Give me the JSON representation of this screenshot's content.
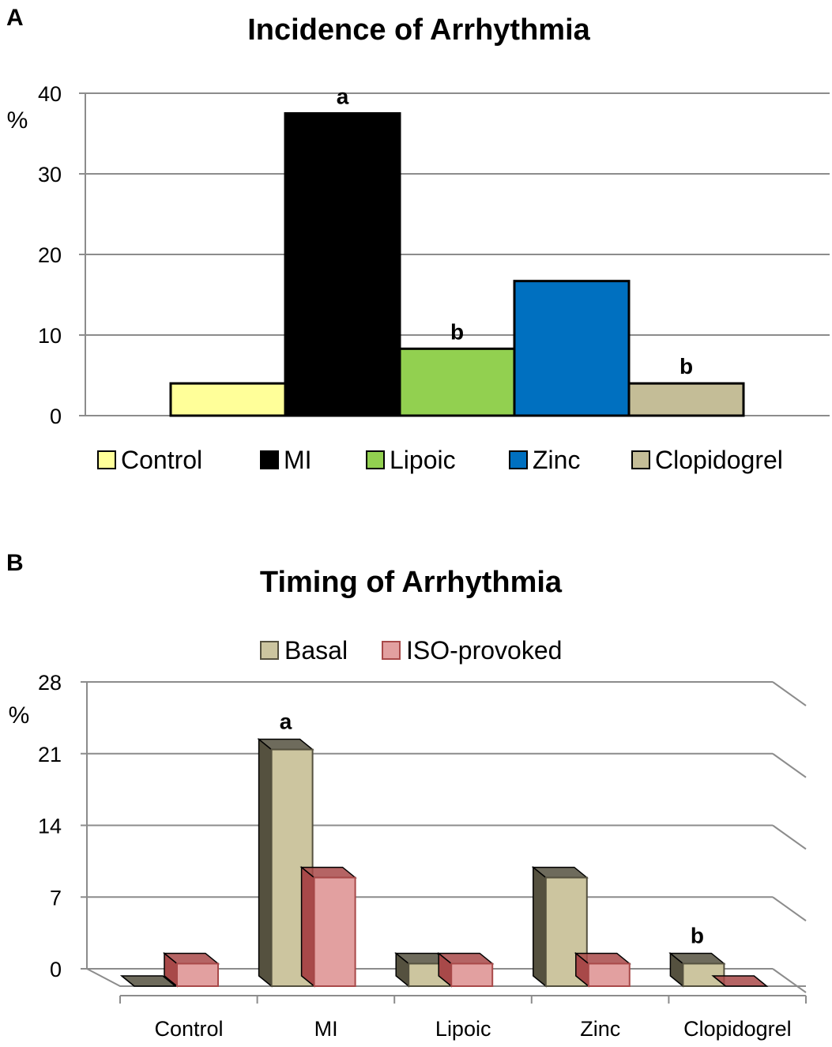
{
  "chart_data": [
    {
      "panel": "A",
      "type": "bar",
      "title": "Incidence of Arrhythmia",
      "ylabel": "%",
      "xlabel": "",
      "ylim": [
        0,
        40
      ],
      "yticks": [
        0,
        10,
        20,
        30,
        40
      ],
      "grid": true,
      "legend_position": "bottom",
      "categories": [
        "Control",
        "MI",
        "Lipoic",
        "Zinc",
        "Clopidogrel"
      ],
      "values": [
        4,
        37.5,
        8.3,
        16.7,
        4
      ],
      "colors": [
        "#ffff99",
        "#000000",
        "#92d050",
        "#0070c0",
        "#c4bd97"
      ],
      "annotations": [
        "",
        "a",
        "b",
        "",
        "b"
      ]
    },
    {
      "panel": "B",
      "type": "bar",
      "style": "3d-clustered",
      "title": "Timing of Arrhythmia",
      "ylabel": "%",
      "xlabel": "",
      "ylim": [
        0,
        28
      ],
      "yticks": [
        0,
        7,
        14,
        21,
        28
      ],
      "grid": true,
      "legend_position": "top",
      "categories": [
        "Control",
        "MI",
        "Lipoic",
        "Zinc",
        "Clopidogrel"
      ],
      "series": [
        {
          "name": "Basal",
          "values": [
            0,
            23.1,
            2.2,
            10.6,
            2.2
          ],
          "color": "#ccc59f",
          "dark": "#55513f"
        },
        {
          "name": "ISO-provoked",
          "values": [
            2.2,
            10.6,
            2.2,
            2.2,
            0
          ],
          "color": "#e2a0a0",
          "dark": "#a84949"
        }
      ],
      "annotations": {
        "MI": "a",
        "Clopidogrel": "b"
      }
    }
  ]
}
